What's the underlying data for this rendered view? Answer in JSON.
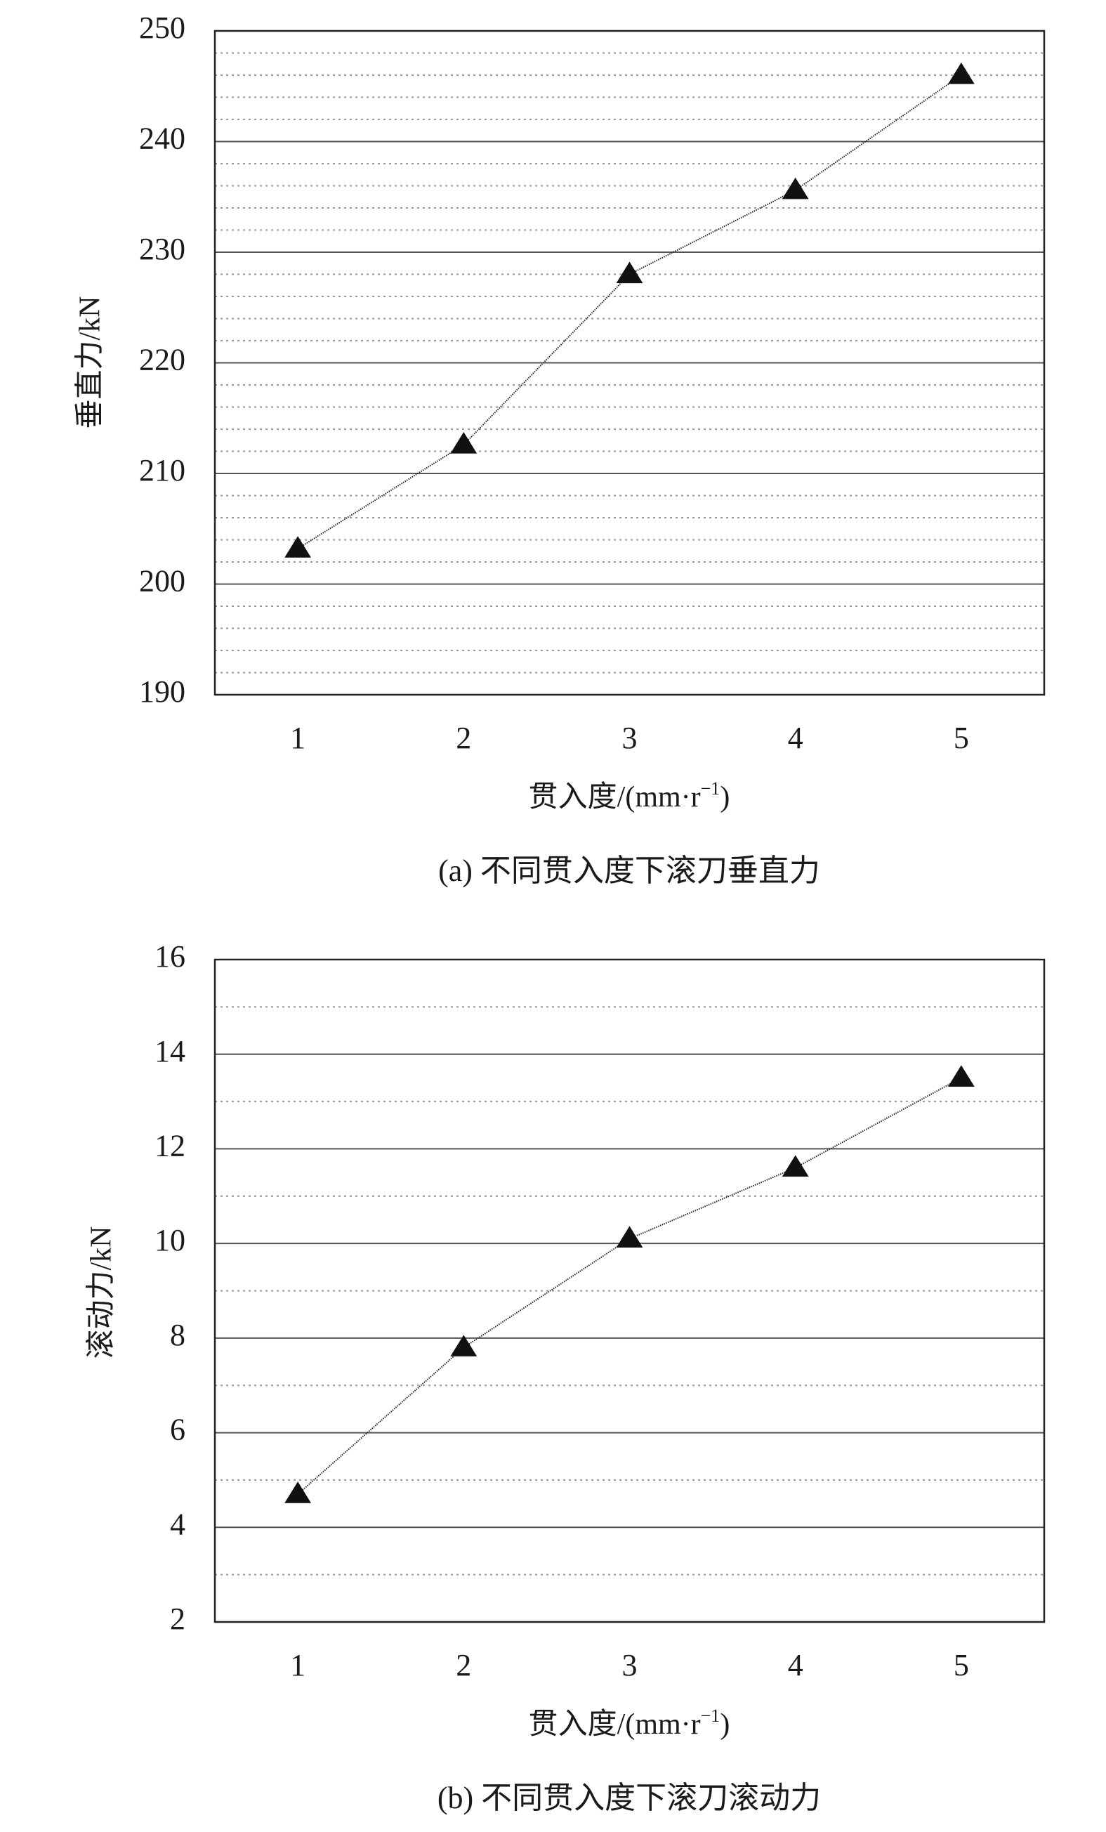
{
  "chart_data": [
    {
      "type": "line",
      "caption": "(a) 不同贯入度下滚刀垂直力",
      "xlabel": "贯入度/(mm·r",
      "xlabel_superscript": "−1",
      "xlabel_suffix": ")",
      "ylabel": "垂直力/kN",
      "x": [
        1,
        2,
        3,
        4,
        5
      ],
      "x_ticks": [
        "1",
        "2",
        "3",
        "4",
        "5"
      ],
      "xlim": [
        0.5,
        5.5
      ],
      "ylim": [
        190,
        250
      ],
      "y_ticks": [
        "190",
        "200",
        "210",
        "220",
        "230",
        "240",
        "250"
      ],
      "y_tick_values": [
        190,
        200,
        210,
        220,
        230,
        240,
        250
      ],
      "minor_gridlines": [
        192,
        194,
        196,
        198,
        202,
        204,
        206,
        208,
        212,
        214,
        216,
        218,
        222,
        224,
        226,
        228,
        232,
        234,
        236,
        238,
        242,
        244,
        246,
        248
      ],
      "grid": true,
      "marker": "triangle",
      "series": [
        {
          "values": [
            203.2,
            212.6,
            228.0,
            235.6,
            246.0
          ]
        }
      ]
    },
    {
      "type": "line",
      "caption": "(b) 不同贯入度下滚刀滚动力",
      "xlabel": "贯入度/(mm·r",
      "xlabel_superscript": "−1",
      "xlabel_suffix": ")",
      "ylabel": "滚动力/kN",
      "x": [
        1,
        2,
        3,
        4,
        5
      ],
      "x_ticks": [
        "1",
        "2",
        "3",
        "4",
        "5"
      ],
      "xlim": [
        0.5,
        5.5
      ],
      "ylim": [
        2,
        16
      ],
      "y_ticks": [
        "2",
        "4",
        "6",
        "8",
        "10",
        "12",
        "14",
        "16"
      ],
      "y_tick_values": [
        2,
        4,
        6,
        8,
        10,
        12,
        14,
        16
      ],
      "minor_gridlines": [
        3,
        5,
        7,
        9,
        11,
        13,
        15
      ],
      "grid": true,
      "marker": "triangle",
      "series": [
        {
          "values": [
            4.7,
            7.8,
            10.1,
            11.6,
            13.5
          ]
        }
      ]
    }
  ]
}
